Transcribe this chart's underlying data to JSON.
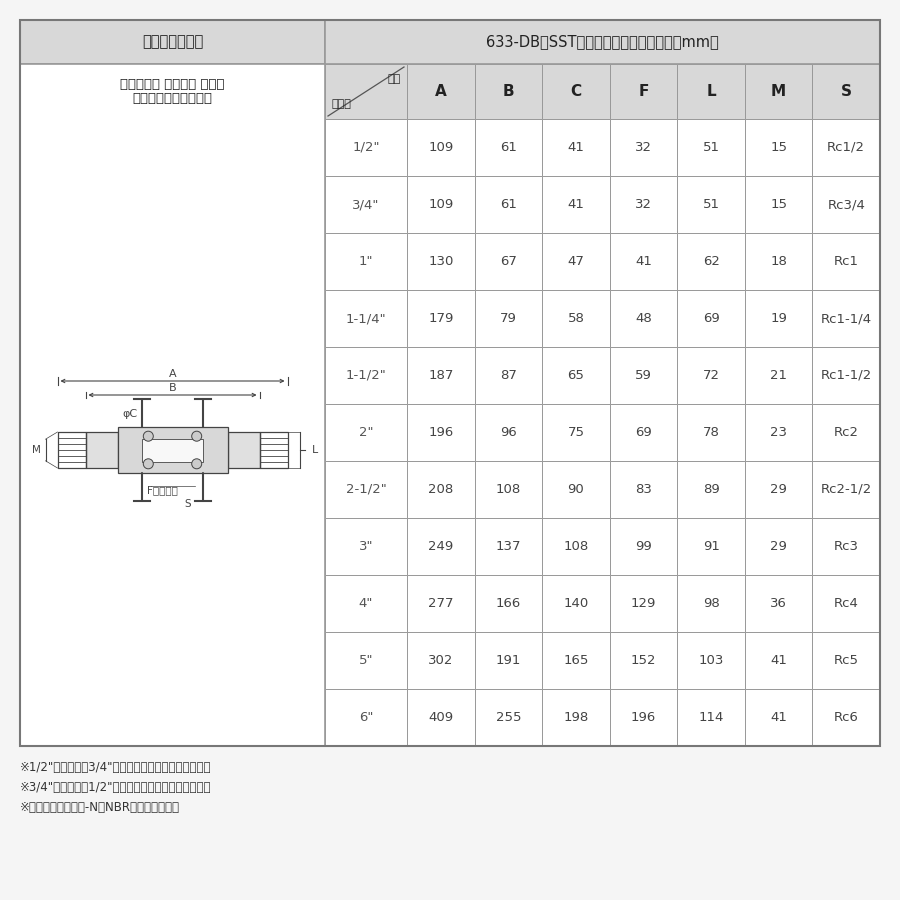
{
  "title_left": "カムアーム継手",
  "title_right": "633-DB　SST　サイズ別寸法表（単位：mm）",
  "subtitle_line1": "カムロック カプラー メネジ",
  "subtitle_line2": "ステンレススチール製",
  "header_diag_top": "位置",
  "header_diag_bottom": "サイズ",
  "columns": [
    "A",
    "B",
    "C",
    "F",
    "L",
    "M",
    "S"
  ],
  "rows": [
    [
      "1/2\"",
      "109",
      "61",
      "41",
      "32",
      "51",
      "15",
      "Rc1/2"
    ],
    [
      "3/4\"",
      "109",
      "61",
      "41",
      "32",
      "51",
      "15",
      "Rc3/4"
    ],
    [
      "1\"",
      "130",
      "67",
      "47",
      "41",
      "62",
      "18",
      "Rc1"
    ],
    [
      "1-1/4\"",
      "179",
      "79",
      "58",
      "48",
      "69",
      "19",
      "Rc1-1/4"
    ],
    [
      "1-1/2\"",
      "187",
      "87",
      "65",
      "59",
      "72",
      "21",
      "Rc1-1/2"
    ],
    [
      "2\"",
      "196",
      "96",
      "75",
      "69",
      "78",
      "23",
      "Rc2"
    ],
    [
      "2-1/2\"",
      "208",
      "108",
      "90",
      "83",
      "89",
      "29",
      "Rc2-1/2"
    ],
    [
      "3\"",
      "249",
      "137",
      "108",
      "99",
      "91",
      "29",
      "Rc3"
    ],
    [
      "4\"",
      "277",
      "166",
      "140",
      "129",
      "98",
      "36",
      "Rc4"
    ],
    [
      "5\"",
      "302",
      "191",
      "165",
      "152",
      "103",
      "41",
      "Rc5"
    ],
    [
      "6\"",
      "409",
      "255",
      "198",
      "196",
      "114",
      "41",
      "Rc6"
    ]
  ],
  "footnotes": [
    "※1/2\"カプラーは3/4\"アダプターにも接続できます。",
    "※3/4\"カプラーは1/2\"アダプターにも接続できます。",
    "※ガスケットはブナ-N（NBR）を標準装備。"
  ],
  "bg_header": "#d8d8d8",
  "bg_white": "#ffffff",
  "border_color": "#999999",
  "text_dark": "#222222",
  "text_mid": "#444444"
}
